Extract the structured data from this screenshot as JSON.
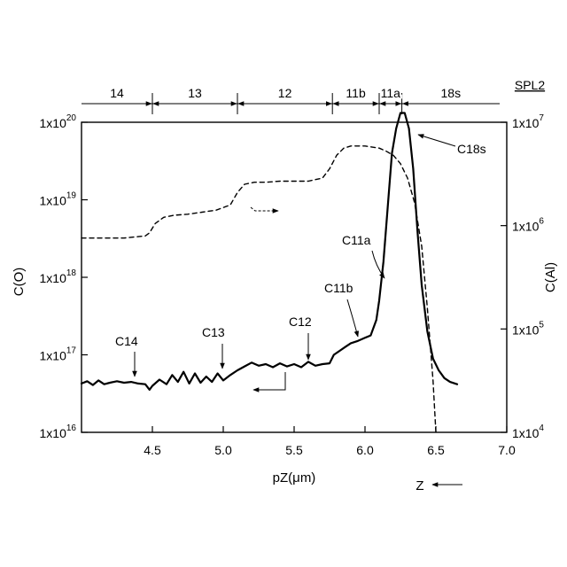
{
  "chart_data": {
    "type": "line",
    "xlabel": "pZ(μm)",
    "ylabel_left": "C(O)",
    "ylabel_right": "C(Al)",
    "direction_label": "Z",
    "xlim": [
      4.0,
      7.0
    ],
    "ylim_left_log10": [
      16,
      20
    ],
    "ylim_right_log10": [
      4,
      7
    ],
    "left_log_scale": true,
    "right_log_scale": true,
    "x_ticks": [
      "4.5",
      "5.0",
      "5.5",
      "6.0",
      "6.5",
      "7.0"
    ],
    "x_tick_values": [
      4.5,
      5.0,
      5.5,
      6.0,
      6.5,
      7.0
    ],
    "left_ticks": [
      {
        "exp": 16,
        "base": "1x10",
        "sup": "16"
      },
      {
        "exp": 17,
        "base": "1x10",
        "sup": "17"
      },
      {
        "exp": 18,
        "base": "1x10",
        "sup": "18"
      },
      {
        "exp": 19,
        "base": "1x10",
        "sup": "19"
      },
      {
        "exp": 20,
        "base": "1x10",
        "sup": "20"
      }
    ],
    "right_ticks": [
      {
        "exp": 4,
        "base": "1x10",
        "sup": "4"
      },
      {
        "exp": 5,
        "base": "1x10",
        "sup": "5"
      },
      {
        "exp": 6,
        "base": "1x10",
        "sup": "6"
      },
      {
        "exp": 7,
        "base": "1x10",
        "sup": "7"
      }
    ],
    "sample_label": "SPL2",
    "layers": [
      {
        "label": "14",
        "x_start": 4.0,
        "x_end": 4.5
      },
      {
        "label": "13",
        "x_start": 4.5,
        "x_end": 5.1
      },
      {
        "label": "12",
        "x_start": 5.1,
        "x_end": 5.77
      },
      {
        "label": "11b",
        "x_start": 5.77,
        "x_end": 6.1
      },
      {
        "label": "11a",
        "x_start": 6.1,
        "x_end": 6.26
      },
      {
        "label": "18s",
        "x_start": 6.26,
        "x_end": 6.95
      }
    ],
    "series": [
      {
        "axis": "left",
        "style": "solid",
        "x": [
          4.0,
          4.04,
          4.08,
          4.12,
          4.16,
          4.2,
          4.25,
          4.3,
          4.35,
          4.4,
          4.45,
          4.48,
          4.5,
          4.55,
          4.6,
          4.64,
          4.68,
          4.72,
          4.76,
          4.8,
          4.84,
          4.88,
          4.92,
          4.96,
          5.0,
          5.05,
          5.1,
          5.15,
          5.2,
          5.25,
          5.3,
          5.35,
          5.4,
          5.45,
          5.5,
          5.55,
          5.6,
          5.65,
          5.7,
          5.75,
          5.78,
          5.82,
          5.86,
          5.9,
          5.95,
          6.0,
          6.04,
          6.08,
          6.1,
          6.13,
          6.16,
          6.19,
          6.22,
          6.25,
          6.28,
          6.31,
          6.34,
          6.37,
          6.4,
          6.44,
          6.48,
          6.52,
          6.56,
          6.6,
          6.65
        ],
        "y_log10": [
          16.63,
          16.66,
          16.61,
          16.67,
          16.62,
          16.64,
          16.66,
          16.64,
          16.65,
          16.63,
          16.62,
          16.55,
          16.6,
          16.68,
          16.62,
          16.74,
          16.65,
          16.78,
          16.63,
          16.76,
          16.64,
          16.72,
          16.65,
          16.76,
          16.67,
          16.74,
          16.8,
          16.85,
          16.9,
          16.86,
          16.88,
          16.84,
          16.89,
          16.85,
          16.88,
          16.84,
          16.91,
          16.86,
          16.88,
          16.89,
          17.0,
          17.05,
          17.1,
          17.15,
          17.18,
          17.22,
          17.25,
          17.45,
          17.7,
          18.2,
          18.9,
          19.6,
          19.92,
          20.12,
          20.12,
          19.92,
          19.4,
          18.6,
          17.9,
          17.3,
          16.95,
          16.8,
          16.7,
          16.65,
          16.62
        ]
      },
      {
        "axis": "right",
        "style": "dashed",
        "x": [
          4.0,
          4.15,
          4.3,
          4.45,
          4.48,
          4.52,
          4.58,
          4.65,
          4.75,
          4.85,
          4.95,
          5.05,
          5.1,
          5.15,
          5.22,
          5.3,
          5.4,
          5.5,
          5.6,
          5.7,
          5.75,
          5.8,
          5.85,
          5.9,
          6.0,
          6.1,
          6.15,
          6.2,
          6.25,
          6.3,
          6.35,
          6.4,
          6.44,
          6.48,
          6.5
        ],
        "y_log10": [
          5.88,
          5.88,
          5.88,
          5.9,
          5.93,
          6.02,
          6.08,
          6.1,
          6.11,
          6.13,
          6.15,
          6.2,
          6.32,
          6.4,
          6.42,
          6.42,
          6.43,
          6.43,
          6.43,
          6.46,
          6.55,
          6.68,
          6.75,
          6.77,
          6.77,
          6.75,
          6.72,
          6.68,
          6.6,
          6.46,
          6.22,
          5.8,
          5.2,
          4.5,
          4.0
        ]
      }
    ],
    "annotations": [
      {
        "text": "C14"
      },
      {
        "text": "C13"
      },
      {
        "text": "C12"
      },
      {
        "text": "C11b"
      },
      {
        "text": "C11a"
      },
      {
        "text": "C18s"
      }
    ]
  }
}
